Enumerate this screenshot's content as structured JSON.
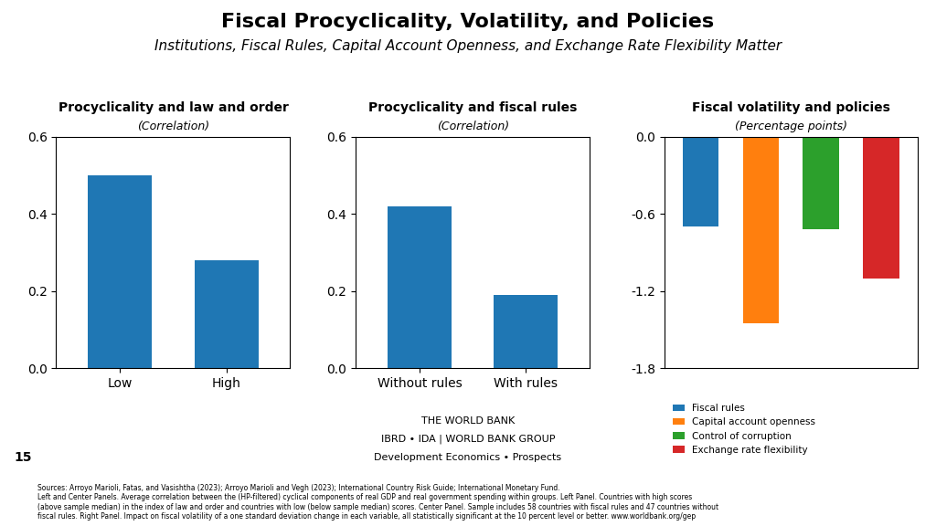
{
  "title": "Fiscal Procyclicality, Volatility, and Policies",
  "subtitle": "Institutions, Fiscal Rules, Capital Account Openness, and Exchange Rate Flexibility Matter",
  "annotations": [
    "Sources: Arroyo Marioli, Fatas, and Vasishtha (2023); Arroyo Marioli and Vegh (2023); International Country Risk Guide; International Monetary Fund.\nLeft and Center Panels. Average correlation between the (HP-filtered) cyclical components of real GDP and real government spending within groups. Left Panel. Countries with high scores\n(above sample median) in the index of law and order and countries with low (below sample median) scores. Center Panel. Sample includes 58 countries with fiscal rules and 47 countries without\nfiscal rules. Right Panel. Impact on fiscal volatility of a one standard deviation change in each variable, all statistically significant at the 10 percent level or better. www.worldbank.org/gep",
    "15",
    "THE WORLD BANK",
    "IBRD • IDA | WORLD BANK GROUP",
    "Development Economics • Prospects"
  ],
  "chart_data": [
    {
      "type": "bar",
      "title": "Procyclicality and law and order",
      "subtitle": "(Correlation)",
      "categories": [
        "Low",
        "High"
      ],
      "values": [
        0.5,
        0.28
      ],
      "ylim": [
        0.0,
        0.6
      ],
      "yticks": [
        0.0,
        0.2,
        0.4,
        0.6
      ],
      "grid": false
    },
    {
      "type": "bar",
      "title": "Procyclicality and fiscal rules",
      "subtitle": "(Correlation)",
      "categories": [
        "Without rules",
        "With rules"
      ],
      "values": [
        0.42,
        0.19
      ],
      "ylim": [
        0.0,
        0.6
      ],
      "yticks": [
        0.0,
        0.2,
        0.4,
        0.6
      ],
      "grid": false
    },
    {
      "type": "bar",
      "title": "Fiscal volatility and policies",
      "subtitle": "(Percentage points)",
      "categories": [
        "Fiscal rules",
        "Capital account openness",
        "Control of corruption",
        "Exchange rate flexibility"
      ],
      "values": [
        -0.7,
        -1.45,
        -0.72,
        -1.1
      ],
      "ylim": [
        -1.8,
        0.0
      ],
      "yticks": [
        0.0,
        -0.6,
        -1.2,
        -1.8
      ],
      "legend": "lower left",
      "tick_labels": "y",
      "grid": false
    }
  ]
}
